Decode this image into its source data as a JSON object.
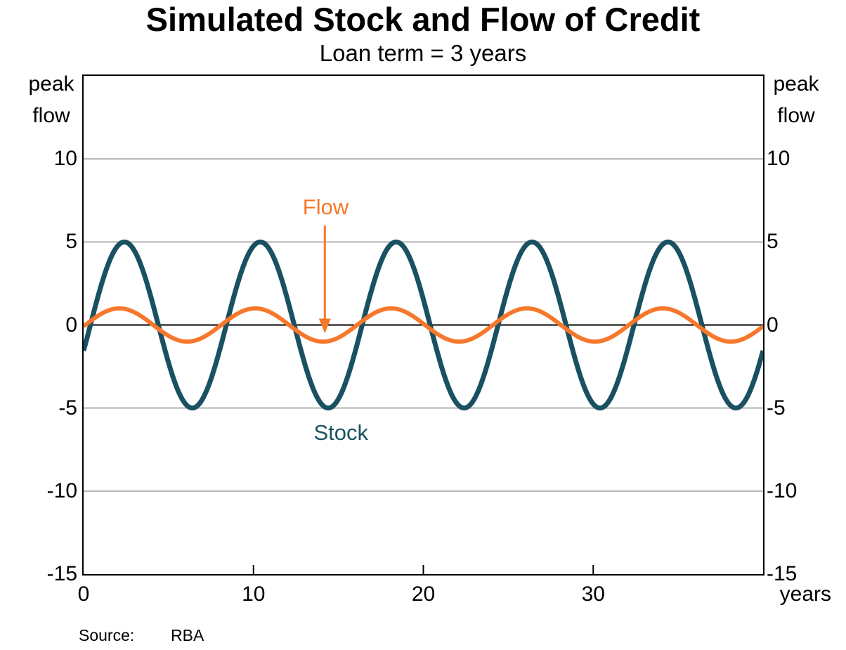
{
  "title": "Simulated Stock and Flow of Credit",
  "subtitle": "Loan term = 3 years",
  "source": {
    "label": "Source:",
    "value": "RBA"
  },
  "colors": {
    "stock": "#1A5162",
    "flow": "#F7772B",
    "gridline": "#B3B3B3",
    "axis": "#000000",
    "background": "#FFFFFF"
  },
  "chart_data": {
    "type": "line",
    "title": "Simulated Stock and Flow of Credit",
    "subtitle": "Loan term = 3 years",
    "x_axis": {
      "label": "years",
      "min": 0,
      "max": 40,
      "tick_marks": [
        10,
        20,
        30
      ],
      "tick_labels": [
        0,
        10,
        20,
        30
      ],
      "grid": false
    },
    "y_axis": {
      "unit_top": "peak",
      "unit_bottom": "flow",
      "min": -15,
      "max": 15,
      "tick_labels": [
        10,
        5,
        0,
        -5,
        -10,
        -15
      ],
      "gridlines": [
        10,
        5,
        -5,
        -10
      ],
      "zero_line": true
    },
    "legend_position": "inline-annotations",
    "x_years_sampled": [
      0,
      1,
      2,
      3,
      4,
      5,
      6,
      7,
      8,
      9,
      10,
      11,
      12,
      13,
      14,
      15,
      16,
      17,
      18,
      19,
      20,
      21,
      22,
      23,
      24,
      25,
      26,
      27,
      28,
      29,
      30,
      31,
      32,
      33,
      34,
      35,
      36,
      37,
      38,
      39,
      40
    ],
    "series": [
      {
        "name": "Stock",
        "color": "#1A5162",
        "line_width": 7,
        "amplitude": 5,
        "period_years": 8,
        "peak_at_years": 2.4,
        "values_at_sampled_years": [
          -1.55,
          2.27,
          4.76,
          4.46,
          1.55,
          -2.27,
          -4.76,
          -4.46,
          -1.55,
          2.27,
          4.76,
          4.46,
          1.55,
          -2.27,
          -4.76,
          -4.46,
          -1.55,
          2.27,
          4.76,
          4.46,
          1.55,
          -2.27,
          -4.76,
          -4.46,
          -1.55,
          2.27,
          4.76,
          4.46,
          1.55,
          -2.27,
          -4.76,
          -4.46,
          -1.55,
          2.27,
          4.76,
          4.46,
          1.55,
          -2.27,
          -4.76,
          -4.46,
          -1.55
        ]
      },
      {
        "name": "Flow",
        "color": "#F7772B",
        "line_width": 6,
        "amplitude": 1,
        "period_years": 8,
        "peak_at_years": 2.1,
        "values_at_sampled_years": [
          -0.08,
          0.65,
          1.0,
          0.76,
          0.08,
          -0.65,
          -1.0,
          -0.76,
          -0.08,
          0.65,
          1.0,
          0.76,
          0.08,
          -0.65,
          -1.0,
          -0.76,
          -0.08,
          0.65,
          1.0,
          0.76,
          0.08,
          -0.65,
          -1.0,
          -0.76,
          -0.08,
          0.65,
          1.0,
          0.76,
          0.08,
          -0.65,
          -1.0,
          -0.76,
          -0.08,
          0.65,
          1.0,
          0.76,
          0.08,
          -0.65,
          -1.0,
          -0.76,
          -0.08
        ]
      }
    ]
  },
  "annotations": {
    "flow": {
      "text": "Flow",
      "x_years": 14.25,
      "value": 7.1,
      "arrow": {
        "x_years": 14.2,
        "from_value": 6.0,
        "to_value": 0.3,
        "tip_value": -0.5
      }
    },
    "stock": {
      "text": "Stock",
      "x_years": 15.15,
      "value": -6.5
    }
  }
}
